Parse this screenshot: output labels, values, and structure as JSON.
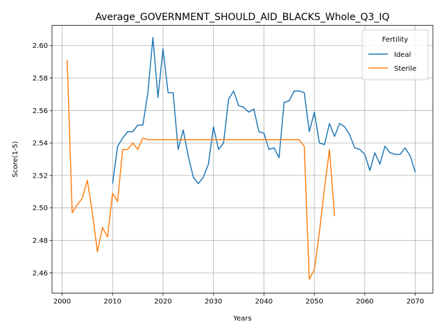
{
  "chart_data": {
    "type": "line",
    "title": "Average_GOVERNMENT_SHOULD_AID_BLACKS_Whole_Q3_IQ",
    "xlabel": "Years",
    "ylabel": "Score(1-5)",
    "xlim": [
      1998,
      2073.5
    ],
    "ylim": [
      2.4475,
      2.6125
    ],
    "x_ticks": [
      2000,
      2010,
      2020,
      2030,
      2040,
      2050,
      2060,
      2070
    ],
    "y_ticks": [
      2.46,
      2.48,
      2.5,
      2.52,
      2.54,
      2.56,
      2.58,
      2.6
    ],
    "y_tick_labels": [
      "2.46",
      "2.48",
      "2.50",
      "2.52",
      "2.54",
      "2.56",
      "2.58",
      "2.60"
    ],
    "grid": true,
    "legend": {
      "title": "Fertility",
      "placement": "top-right"
    },
    "series": [
      {
        "name": "Ideal",
        "color": "#1f77b4",
        "x": [
          2010,
          2011,
          2012,
          2013,
          2014,
          2015,
          2016,
          2017,
          2018,
          2019,
          2020,
          2021,
          2022,
          2023,
          2024,
          2025,
          2026,
          2027,
          2028,
          2029,
          2030,
          2031,
          2032,
          2033,
          2034,
          2035,
          2036,
          2037,
          2038,
          2039,
          2040,
          2041,
          2042,
          2043,
          2044,
          2045,
          2046,
          2047,
          2048,
          2049,
          2050,
          2051,
          2052,
          2053,
          2054,
          2055,
          2056,
          2057,
          2058,
          2059,
          2060,
          2061,
          2062,
          2063,
          2064,
          2065,
          2066,
          2067,
          2068,
          2069,
          2070
        ],
        "values": [
          2.515,
          2.538,
          2.543,
          2.547,
          2.547,
          2.551,
          2.551,
          2.571,
          2.605,
          2.568,
          2.598,
          2.571,
          2.571,
          2.536,
          2.548,
          2.532,
          2.519,
          2.515,
          2.519,
          2.527,
          2.55,
          2.536,
          2.54,
          2.567,
          2.572,
          2.563,
          2.562,
          2.559,
          2.561,
          2.547,
          2.546,
          2.536,
          2.537,
          2.531,
          2.565,
          2.566,
          2.572,
          2.572,
          2.571,
          2.547,
          2.559,
          2.54,
          2.539,
          2.552,
          2.544,
          2.552,
          2.55,
          2.545,
          2.537,
          2.536,
          2.533,
          2.523,
          2.534,
          2.527,
          2.538,
          2.534,
          2.533,
          2.533,
          2.537,
          2.532,
          2.522
        ]
      },
      {
        "name": "Sterile",
        "color": "#ff7f0e",
        "x": [
          2001,
          2002,
          2003,
          2004,
          2005,
          2006,
          2007,
          2008,
          2009,
          2010,
          2011,
          2012,
          2013,
          2014,
          2015,
          2016,
          2017,
          2018,
          2019,
          2020,
          2021,
          2022,
          2023,
          2024,
          2025,
          2026,
          2027,
          2028,
          2029,
          2030,
          2031,
          2032,
          2033,
          2034,
          2035,
          2036,
          2037,
          2038,
          2039,
          2040,
          2041,
          2042,
          2043,
          2044,
          2045,
          2046,
          2047,
          2048,
          2049,
          2050,
          2051,
          2052,
          2053,
          2054
        ],
        "values": [
          2.591,
          2.497,
          2.502,
          2.506,
          2.517,
          2.497,
          2.473,
          2.488,
          2.482,
          2.509,
          2.504,
          2.536,
          2.536,
          2.54,
          2.536,
          2.543,
          2.542,
          2.542,
          2.542,
          2.542,
          2.542,
          2.542,
          2.542,
          2.542,
          2.542,
          2.542,
          2.542,
          2.542,
          2.542,
          2.542,
          2.542,
          2.542,
          2.542,
          2.542,
          2.542,
          2.542,
          2.542,
          2.542,
          2.542,
          2.542,
          2.542,
          2.542,
          2.542,
          2.542,
          2.542,
          2.542,
          2.542,
          2.538,
          2.456,
          2.462,
          2.485,
          2.512,
          2.536,
          2.495
        ]
      }
    ]
  }
}
